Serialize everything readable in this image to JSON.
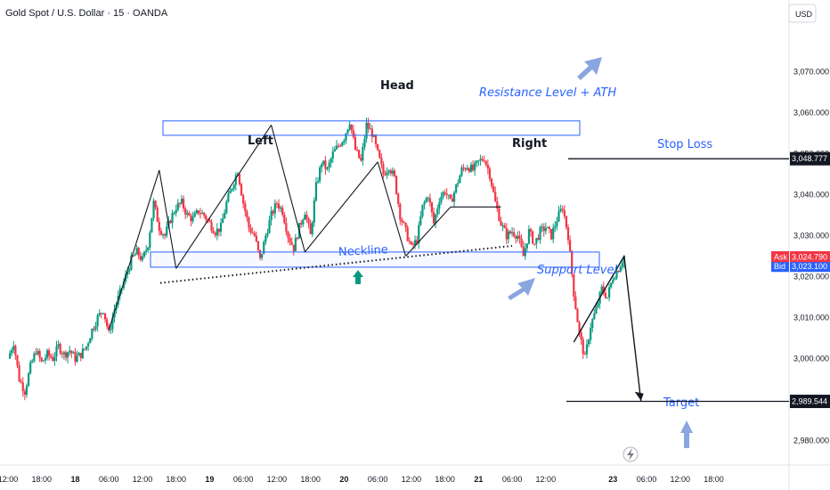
{
  "header": {
    "title": "Gold Spot / U.S. Dollar · 15 · OANDA",
    "currency": "USD"
  },
  "chart_data": {
    "type": "candlestick",
    "symbol": "Gold Spot / U.S. Dollar",
    "timeframe": "15",
    "source": "OANDA",
    "ylim": [
      2974,
      3081
    ],
    "y_ticks": [
      {
        "value": 3070,
        "label": "3,070.000"
      },
      {
        "value": 3060,
        "label": "3,060.000"
      },
      {
        "value": 3050,
        "label": "3,050.000"
      },
      {
        "value": 3040,
        "label": "3,040.000"
      },
      {
        "value": 3030,
        "label": "3,030.000"
      },
      {
        "value": 3020,
        "label": "3,020.000"
      },
      {
        "value": 3010,
        "label": "3,010.000"
      },
      {
        "value": 3000,
        "label": "3,000.000"
      },
      {
        "value": 2980,
        "label": "2,980.000"
      }
    ],
    "x_ticks": [
      {
        "t": 0,
        "label": "12:00",
        "bold": false
      },
      {
        "t": 6,
        "label": "18:00",
        "bold": false
      },
      {
        "t": 12,
        "label": "18",
        "bold": true
      },
      {
        "t": 18,
        "label": "06:00",
        "bold": false
      },
      {
        "t": 24,
        "label": "12:00",
        "bold": false
      },
      {
        "t": 30,
        "label": "18:00",
        "bold": false
      },
      {
        "t": 36,
        "label": "19",
        "bold": true
      },
      {
        "t": 42,
        "label": "06:00",
        "bold": false
      },
      {
        "t": 48,
        "label": "12:00",
        "bold": false
      },
      {
        "t": 54,
        "label": "18:00",
        "bold": false
      },
      {
        "t": 60,
        "label": "20",
        "bold": true
      },
      {
        "t": 66,
        "label": "06:00",
        "bold": false
      },
      {
        "t": 72,
        "label": "12:00",
        "bold": false
      },
      {
        "t": 78,
        "label": "18:00",
        "bold": false
      },
      {
        "t": 84,
        "label": "21",
        "bold": true
      },
      {
        "t": 90,
        "label": "06:00",
        "bold": false
      },
      {
        "t": 96,
        "label": "12:00",
        "bold": false
      },
      {
        "t": 108,
        "label": "23",
        "bold": true
      },
      {
        "t": 114,
        "label": "06:00",
        "bold": false
      },
      {
        "t": 120,
        "label": "12:00",
        "bold": false
      },
      {
        "t": 126,
        "label": "18:00",
        "bold": false
      }
    ],
    "x_range": [
      0,
      138
    ],
    "price_path": [
      [
        0,
        3000
      ],
      [
        1,
        3004
      ],
      [
        2,
        2995
      ],
      [
        3,
        2992
      ],
      [
        4,
        2998
      ],
      [
        5,
        3002
      ],
      [
        6,
        2999
      ],
      [
        7,
        3001
      ],
      [
        8,
        3000
      ],
      [
        9,
        3003
      ],
      [
        10,
        3001
      ],
      [
        11,
        3002
      ],
      [
        12,
        3000
      ],
      [
        13,
        3001
      ],
      [
        14,
        3003
      ],
      [
        15,
        3007
      ],
      [
        16,
        3010
      ],
      [
        17,
        3012
      ],
      [
        18,
        3006
      ],
      [
        19,
        3012
      ],
      [
        20,
        3016
      ],
      [
        21,
        3020
      ],
      [
        22,
        3024
      ],
      [
        23,
        3026
      ],
      [
        24,
        3024
      ],
      [
        25,
        3028
      ],
      [
        26,
        3038
      ],
      [
        27,
        3032
      ],
      [
        28,
        3030
      ],
      [
        29,
        3034
      ],
      [
        30,
        3037
      ],
      [
        31,
        3038
      ],
      [
        32,
        3035
      ],
      [
        33,
        3034
      ],
      [
        34,
        3036
      ],
      [
        35,
        3035
      ],
      [
        36,
        3033
      ],
      [
        37,
        3031
      ],
      [
        38,
        3032
      ],
      [
        39,
        3038
      ],
      [
        40,
        3042
      ],
      [
        41,
        3046
      ],
      [
        42,
        3038
      ],
      [
        43,
        3032
      ],
      [
        44,
        3030
      ],
      [
        45,
        3024
      ],
      [
        46,
        3030
      ],
      [
        47,
        3035
      ],
      [
        48,
        3038
      ],
      [
        49,
        3036
      ],
      [
        50,
        3030
      ],
      [
        51,
        3027
      ],
      [
        52,
        3032
      ],
      [
        53,
        3036
      ],
      [
        54,
        3030
      ],
      [
        55,
        3042
      ],
      [
        56,
        3048
      ],
      [
        57,
        3046
      ],
      [
        58,
        3050
      ],
      [
        59,
        3052
      ],
      [
        60,
        3054
      ],
      [
        61,
        3058
      ],
      [
        62,
        3051
      ],
      [
        63,
        3048
      ],
      [
        64,
        3057
      ],
      [
        65,
        3055
      ],
      [
        66,
        3050
      ],
      [
        67,
        3045
      ],
      [
        68,
        3047
      ],
      [
        69,
        3044
      ],
      [
        70,
        3035
      ],
      [
        71,
        3031
      ],
      [
        72,
        3027
      ],
      [
        73,
        3029
      ],
      [
        74,
        3037
      ],
      [
        75,
        3040
      ],
      [
        76,
        3033
      ],
      [
        77,
        3039
      ],
      [
        78,
        3041
      ],
      [
        79,
        3038
      ],
      [
        80,
        3042
      ],
      [
        81,
        3046
      ],
      [
        82,
        3047
      ],
      [
        83,
        3046
      ],
      [
        84,
        3048
      ],
      [
        85,
        3049
      ],
      [
        86,
        3045
      ],
      [
        87,
        3038
      ],
      [
        88,
        3033
      ],
      [
        89,
        3030
      ],
      [
        90,
        3031
      ],
      [
        91,
        3030
      ],
      [
        92,
        3025
      ],
      [
        93,
        3031
      ],
      [
        94,
        3028
      ],
      [
        95,
        3031
      ],
      [
        96,
        3032
      ],
      [
        97,
        3030
      ],
      [
        98,
        3034
      ],
      [
        99,
        3037
      ],
      [
        100,
        3030
      ],
      [
        101,
        3016
      ],
      [
        102,
        3006
      ],
      [
        103,
        3000
      ],
      [
        104,
        3008
      ],
      [
        105,
        3012
      ],
      [
        106,
        3017
      ],
      [
        107,
        3015
      ],
      [
        108,
        3020
      ],
      [
        109,
        3022
      ],
      [
        110,
        3025
      ]
    ],
    "annotations": {
      "left_label": "Left",
      "head_label": "Head",
      "right_label": "Right",
      "resistance_label": "Resistance Level + ATH",
      "neckline_label": "Neckline",
      "support_label": "Support Level",
      "stop_loss_label": "Stop Loss",
      "target_label": "Target"
    },
    "levels": {
      "stop_loss": 3048.777,
      "stop_loss_label": "3,048.777",
      "target": 2989.544,
      "target_label": "2,989.544",
      "ask": 3024.79,
      "ask_label": "3,024.790",
      "ask_tag": "Ask",
      "bid": 3023.1,
      "bid_label": "3,023.100",
      "bid_tag": "Bid"
    },
    "zones": {
      "resistance": [
        3054.5,
        3058.0
      ],
      "support": [
        3022.3,
        3026.0
      ]
    },
    "pattern_lines": [
      [
        [
          18,
          3007
        ],
        [
          27,
          3046
        ]
      ],
      [
        [
          27,
          3046
        ],
        [
          30,
          3022
        ]
      ],
      [
        [
          30,
          3022
        ],
        [
          47,
          3057
        ]
      ],
      [
        [
          47,
          3057
        ],
        [
          53,
          3026
        ]
      ],
      [
        [
          53,
          3026
        ],
        [
          66,
          3048
        ]
      ],
      [
        [
          66,
          3048
        ],
        [
          71,
          3025
        ]
      ],
      [
        [
          71,
          3025
        ],
        [
          79,
          3037
        ]
      ],
      [
        [
          79,
          3037
        ],
        [
          88,
          3037
        ]
      ]
    ],
    "neckline_dotted": [
      [
        24,
        3021.5
      ],
      [
        90,
        3027.5
      ]
    ],
    "projection": [
      [
        101,
        3004
      ],
      [
        110,
        3025
      ],
      [
        113,
        2989.5
      ]
    ],
    "colors": {
      "up": "#089981",
      "down": "#f23645",
      "annotation_blue": "#2962ff",
      "arrow_blue": "#6b8fd6",
      "arrow_green": "#089981"
    }
  }
}
